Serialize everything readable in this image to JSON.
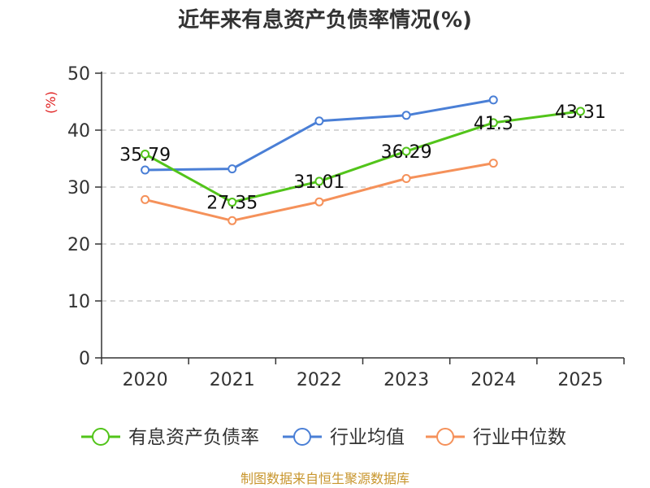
{
  "chart_data": {
    "type": "line",
    "title": "近年来有息资产负债率情况(%)",
    "unit_label": "(%)",
    "categories": [
      "2020",
      "2021",
      "2022",
      "2023",
      "2024",
      "2025"
    ],
    "y_ticks": [
      "0",
      "10",
      "20",
      "30",
      "40",
      "50"
    ],
    "ylim": [
      0,
      50
    ],
    "grid": true,
    "legend_position": "bottom",
    "series": [
      {
        "name": "有息资产负债率",
        "color": "#52c41a",
        "values": [
          35.79,
          27.35,
          31.01,
          36.29,
          41.3,
          43.31
        ],
        "labels": [
          "35.79",
          "27.35",
          "31.01",
          "36.29",
          "41.3",
          "43.31"
        ]
      },
      {
        "name": "行业均值",
        "color": "#4a7fd6",
        "values": [
          33.0,
          33.2,
          41.6,
          42.6,
          45.3,
          null
        ]
      },
      {
        "name": "行业中位数",
        "color": "#f5915a",
        "values": [
          27.8,
          24.1,
          27.4,
          31.5,
          34.2,
          null
        ]
      }
    ],
    "source": "制图数据来自恒生聚源数据库",
    "source_color": "#c8962e",
    "unit_color": "#e02020"
  }
}
